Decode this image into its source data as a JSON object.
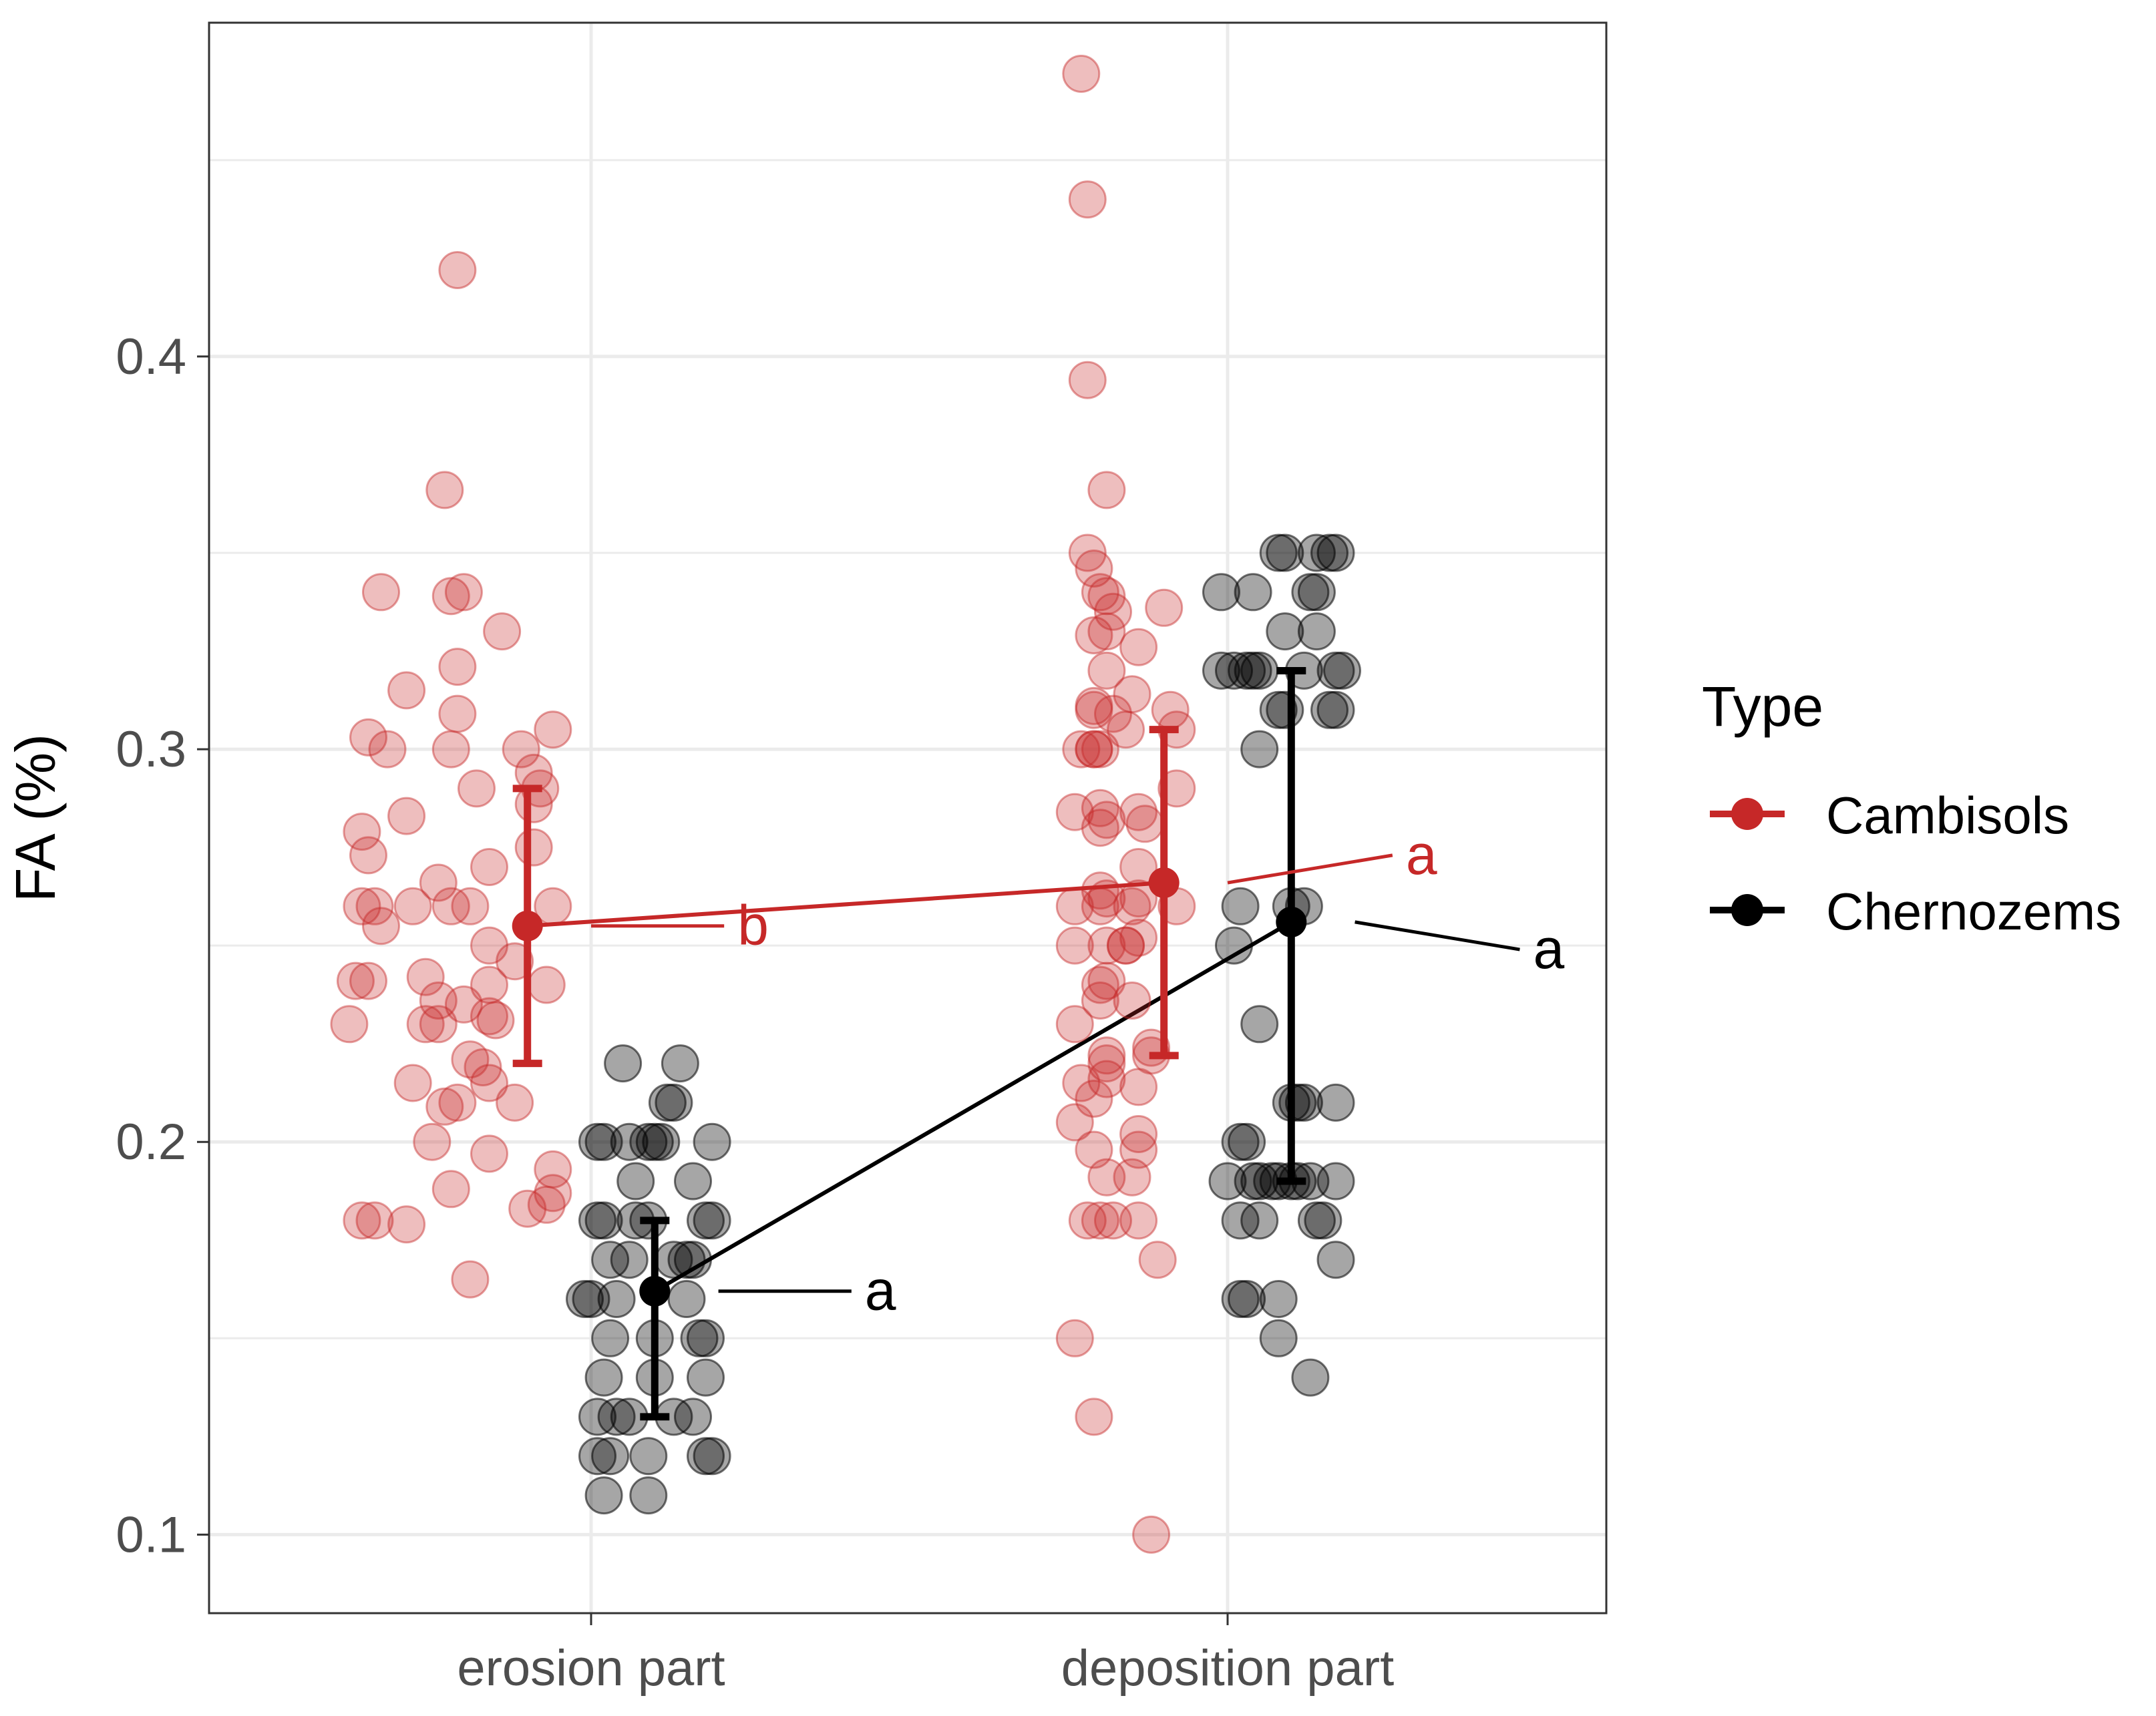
{
  "colors": {
    "Cambisols": "#C62828",
    "Chernozems": "#000000",
    "grid": "#EBEBEB",
    "panel_border": "#333333",
    "tick_text": "#4D4D4D"
  },
  "chart_data": {
    "type": "scatter",
    "subtype": "jitter points with mean ± error bars, mean-connecting lines and significance letters",
    "title": "",
    "xlabel": "",
    "ylabel": "FA (%)",
    "categories": [
      "erosion part",
      "deposition part"
    ],
    "ylim": [
      0.08,
      0.485
    ],
    "yticks": [
      0.1,
      0.2,
      0.3,
      0.4
    ],
    "ytick_labels": [
      "0.1",
      "0.2",
      "0.3",
      "0.4"
    ],
    "grid": true,
    "legend": {
      "title": "Type",
      "position": "right",
      "entries": [
        "Cambisols",
        "Chernozems"
      ]
    },
    "series": [
      {
        "name": "Cambisols",
        "summary": [
          {
            "category": "erosion part",
            "mean": 0.255,
            "lower": 0.22,
            "upper": 0.29,
            "letter": "b"
          },
          {
            "category": "deposition part",
            "mean": 0.266,
            "lower": 0.222,
            "upper": 0.305,
            "letter": "a"
          }
        ],
        "points": [
          [
            -0.21,
            0.422
          ],
          [
            -0.23,
            0.366
          ],
          [
            -0.33,
            0.34
          ],
          [
            -0.22,
            0.339
          ],
          [
            -0.2,
            0.34
          ],
          [
            -0.14,
            0.33
          ],
          [
            -0.21,
            0.321
          ],
          [
            -0.29,
            0.315
          ],
          [
            -0.35,
            0.303
          ],
          [
            -0.32,
            0.3
          ],
          [
            -0.21,
            0.309
          ],
          [
            -0.22,
            0.3
          ],
          [
            -0.18,
            0.29
          ],
          [
            -0.06,
            0.305
          ],
          [
            -0.11,
            0.3
          ],
          [
            -0.09,
            0.294
          ],
          [
            -0.08,
            0.29
          ],
          [
            -0.09,
            0.286
          ],
          [
            -0.29,
            0.283
          ],
          [
            -0.36,
            0.279
          ],
          [
            -0.35,
            0.273
          ],
          [
            -0.09,
            0.275
          ],
          [
            -0.24,
            0.266
          ],
          [
            -0.16,
            0.27
          ],
          [
            -0.36,
            0.26
          ],
          [
            -0.34,
            0.26
          ],
          [
            -0.28,
            0.26
          ],
          [
            -0.22,
            0.26
          ],
          [
            -0.19,
            0.26
          ],
          [
            -0.06,
            0.26
          ],
          [
            -0.33,
            0.255
          ],
          [
            -0.16,
            0.25
          ],
          [
            -0.12,
            0.246
          ],
          [
            -0.37,
            0.241
          ],
          [
            -0.35,
            0.241
          ],
          [
            -0.26,
            0.242
          ],
          [
            -0.16,
            0.24
          ],
          [
            -0.07,
            0.24
          ],
          [
            -0.24,
            0.236
          ],
          [
            -0.2,
            0.235
          ],
          [
            -0.38,
            0.23
          ],
          [
            -0.26,
            0.23
          ],
          [
            -0.24,
            0.23
          ],
          [
            -0.16,
            0.232
          ],
          [
            -0.15,
            0.231
          ],
          [
            -0.17,
            0.219
          ],
          [
            -0.19,
            0.221
          ],
          [
            -0.16,
            0.215
          ],
          [
            -0.28,
            0.215
          ],
          [
            -0.21,
            0.21
          ],
          [
            -0.23,
            0.209
          ],
          [
            -0.12,
            0.21
          ],
          [
            -0.25,
            0.2
          ],
          [
            -0.16,
            0.197
          ],
          [
            -0.06,
            0.193
          ],
          [
            -0.22,
            0.188
          ],
          [
            -0.06,
            0.187
          ],
          [
            -0.07,
            0.184
          ],
          [
            -0.1,
            0.183
          ],
          [
            -0.36,
            0.18
          ],
          [
            -0.34,
            0.18
          ],
          [
            -0.29,
            0.179
          ],
          [
            -0.19,
            0.165
          ],
          [
            0.77,
            0.472
          ],
          [
            0.78,
            0.44
          ],
          [
            0.78,
            0.394
          ],
          [
            0.81,
            0.366
          ],
          [
            0.78,
            0.35
          ],
          [
            0.79,
            0.346
          ],
          [
            0.8,
            0.34
          ],
          [
            0.81,
            0.339
          ],
          [
            0.82,
            0.335
          ],
          [
            0.79,
            0.329
          ],
          [
            0.81,
            0.33
          ],
          [
            0.81,
            0.32
          ],
          [
            0.79,
            0.31
          ],
          [
            0.79,
            0.311
          ],
          [
            0.82,
            0.309
          ],
          [
            0.79,
            0.3
          ],
          [
            0.77,
            0.3
          ],
          [
            0.79,
            0.3
          ],
          [
            0.8,
            0.3
          ],
          [
            0.8,
            0.285
          ],
          [
            0.76,
            0.284
          ],
          [
            0.8,
            0.28
          ],
          [
            0.81,
            0.282
          ],
          [
            0.76,
            0.26
          ],
          [
            0.8,
            0.26
          ],
          [
            0.8,
            0.264
          ],
          [
            0.81,
            0.262
          ],
          [
            0.76,
            0.25
          ],
          [
            0.81,
            0.25
          ],
          [
            0.8,
            0.24
          ],
          [
            0.81,
            0.241
          ],
          [
            0.8,
            0.236
          ],
          [
            0.81,
            0.222
          ],
          [
            0.76,
            0.23
          ],
          [
            0.81,
            0.22
          ],
          [
            0.81,
            0.216
          ],
          [
            0.77,
            0.215
          ],
          [
            0.79,
            0.211
          ],
          [
            0.76,
            0.205
          ],
          [
            0.79,
            0.198
          ],
          [
            0.81,
            0.191
          ],
          [
            0.78,
            0.18
          ],
          [
            0.8,
            0.18
          ],
          [
            0.82,
            0.18
          ],
          [
            0.76,
            0.15
          ],
          [
            0.79,
            0.13
          ],
          [
            0.86,
            0.326
          ],
          [
            0.85,
            0.314
          ],
          [
            0.84,
            0.305
          ],
          [
            0.87,
            0.281
          ],
          [
            0.86,
            0.284
          ],
          [
            0.86,
            0.27
          ],
          [
            0.85,
            0.26
          ],
          [
            0.86,
            0.262
          ],
          [
            0.86,
            0.252
          ],
          [
            0.84,
            0.25
          ],
          [
            0.84,
            0.25
          ],
          [
            0.85,
            0.236
          ],
          [
            0.88,
            0.224
          ],
          [
            0.88,
            0.222
          ],
          [
            0.86,
            0.214
          ],
          [
            0.86,
            0.202
          ],
          [
            0.86,
            0.198
          ],
          [
            0.85,
            0.191
          ],
          [
            0.86,
            0.18
          ],
          [
            0.89,
            0.17
          ],
          [
            0.9,
            0.336
          ],
          [
            0.91,
            0.31
          ],
          [
            0.92,
            0.305
          ],
          [
            0.92,
            0.29
          ],
          [
            0.92,
            0.26
          ],
          [
            0.88,
            0.1
          ]
        ]
      },
      {
        "name": "Chernozems",
        "summary": [
          {
            "category": "erosion part",
            "mean": 0.162,
            "lower": 0.13,
            "upper": 0.18,
            "letter": "a"
          },
          {
            "category": "deposition part",
            "mean": 0.256,
            "lower": 0.19,
            "upper": 0.32,
            "letter": "a"
          }
        ],
        "points": [
          [
            0.05,
            0.22
          ],
          [
            0.14,
            0.22
          ],
          [
            0.12,
            0.21
          ],
          [
            0.13,
            0.21
          ],
          [
            0.01,
            0.2
          ],
          [
            0.02,
            0.2
          ],
          [
            0.06,
            0.2
          ],
          [
            0.09,
            0.2
          ],
          [
            0.11,
            0.2
          ],
          [
            0.1,
            0.2
          ],
          [
            0.19,
            0.2
          ],
          [
            0.07,
            0.19
          ],
          [
            0.16,
            0.19
          ],
          [
            0.01,
            0.18
          ],
          [
            0.02,
            0.18
          ],
          [
            0.07,
            0.18
          ],
          [
            0.09,
            0.18
          ],
          [
            0.18,
            0.18
          ],
          [
            0.19,
            0.18
          ],
          [
            -0.01,
            0.16
          ],
          [
            0.03,
            0.17
          ],
          [
            0.06,
            0.17
          ],
          [
            0.13,
            0.17
          ],
          [
            0.15,
            0.17
          ],
          [
            0.16,
            0.17
          ],
          [
            0.0,
            0.16
          ],
          [
            0.04,
            0.16
          ],
          [
            0.15,
            0.16
          ],
          [
            0.03,
            0.15
          ],
          [
            0.1,
            0.15
          ],
          [
            0.18,
            0.15
          ],
          [
            0.17,
            0.15
          ],
          [
            0.02,
            0.14
          ],
          [
            0.1,
            0.14
          ],
          [
            0.18,
            0.14
          ],
          [
            0.01,
            0.13
          ],
          [
            0.04,
            0.13
          ],
          [
            0.06,
            0.13
          ],
          [
            0.13,
            0.13
          ],
          [
            0.16,
            0.13
          ],
          [
            0.01,
            0.12
          ],
          [
            0.03,
            0.12
          ],
          [
            0.09,
            0.12
          ],
          [
            0.18,
            0.12
          ],
          [
            0.19,
            0.12
          ],
          [
            0.02,
            0.11
          ],
          [
            0.09,
            0.11
          ],
          [
            1.08,
            0.35
          ],
          [
            1.09,
            0.35
          ],
          [
            1.14,
            0.35
          ],
          [
            1.16,
            0.35
          ],
          [
            1.17,
            0.35
          ],
          [
            0.99,
            0.34
          ],
          [
            1.04,
            0.34
          ],
          [
            1.13,
            0.34
          ],
          [
            1.14,
            0.34
          ],
          [
            1.09,
            0.33
          ],
          [
            1.14,
            0.33
          ],
          [
            0.99,
            0.32
          ],
          [
            1.01,
            0.32
          ],
          [
            1.03,
            0.32
          ],
          [
            1.04,
            0.32
          ],
          [
            1.05,
            0.32
          ],
          [
            1.12,
            0.32
          ],
          [
            1.17,
            0.32
          ],
          [
            1.18,
            0.32
          ],
          [
            1.08,
            0.31
          ],
          [
            1.09,
            0.31
          ],
          [
            1.16,
            0.31
          ],
          [
            1.17,
            0.31
          ],
          [
            1.05,
            0.3
          ],
          [
            1.02,
            0.26
          ],
          [
            1.1,
            0.26
          ],
          [
            1.12,
            0.26
          ],
          [
            1.01,
            0.25
          ],
          [
            1.05,
            0.23
          ],
          [
            1.1,
            0.21
          ],
          [
            1.11,
            0.21
          ],
          [
            1.12,
            0.21
          ],
          [
            1.17,
            0.21
          ],
          [
            1.02,
            0.2
          ],
          [
            1.03,
            0.2
          ],
          [
            1.0,
            0.19
          ],
          [
            1.04,
            0.19
          ],
          [
            1.05,
            0.19
          ],
          [
            1.07,
            0.19
          ],
          [
            1.08,
            0.19
          ],
          [
            1.1,
            0.19
          ],
          [
            1.11,
            0.19
          ],
          [
            1.13,
            0.19
          ],
          [
            1.17,
            0.19
          ],
          [
            1.02,
            0.18
          ],
          [
            1.05,
            0.18
          ],
          [
            1.14,
            0.18
          ],
          [
            1.15,
            0.18
          ],
          [
            1.02,
            0.16
          ],
          [
            1.03,
            0.16
          ],
          [
            1.08,
            0.16
          ],
          [
            1.08,
            0.15
          ],
          [
            1.17,
            0.17
          ],
          [
            1.13,
            0.14
          ]
        ]
      }
    ]
  }
}
